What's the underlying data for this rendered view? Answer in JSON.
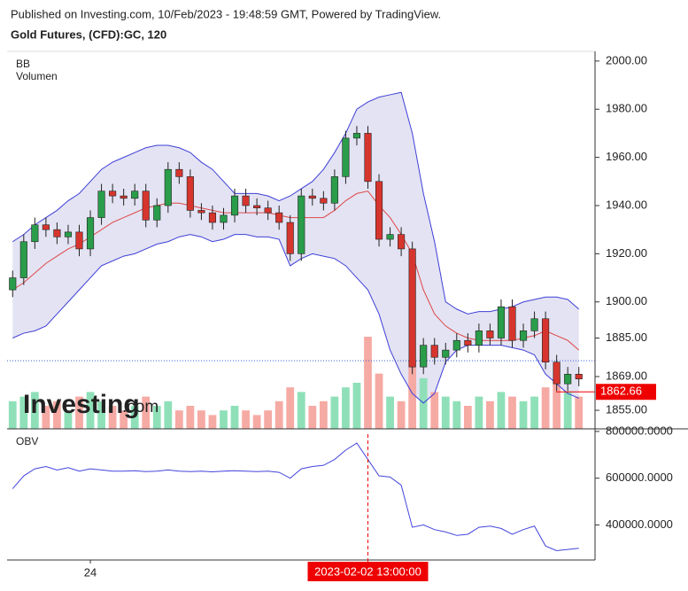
{
  "header": {
    "published": "Published on Investing.com, 10/Feb/2023 - 19:48:59 GMT, Powered by TradingView.",
    "instrument": "Gold Futures, (CFD):GC, 120"
  },
  "watermark": {
    "brand": "Investing",
    "suffix": ".com"
  },
  "chart_data": [
    {
      "type": "candlestick",
      "legend": [
        "BB",
        "Volumen"
      ],
      "categories": [
        null,
        null,
        null,
        null,
        null,
        null,
        null,
        "24",
        null,
        null,
        null,
        null,
        null,
        null,
        null,
        null,
        null,
        null,
        null,
        null,
        null,
        null,
        null,
        null,
        null,
        null,
        null,
        null,
        null,
        null,
        null,
        null,
        "2023-02-02 13:00:00",
        null,
        null,
        null,
        null,
        null,
        null,
        null,
        null,
        null,
        null,
        null,
        null,
        null,
        null,
        null,
        null,
        null,
        null,
        null
      ],
      "open": [
        1905,
        1910,
        1925,
        1932,
        1930,
        1927,
        1929,
        1922,
        1935,
        1946,
        1944,
        1943,
        1946,
        1934,
        1940,
        1955,
        1952,
        1938,
        1937,
        1933,
        1936,
        1944,
        1940,
        1939,
        1937,
        1933,
        1920,
        1944,
        1943,
        1941,
        1952,
        1968,
        1970,
        1950,
        1926,
        1928,
        1922,
        1873,
        1882,
        1877,
        1880,
        1884,
        1882,
        1888,
        1885,
        1898,
        1884,
        1888,
        1893,
        1875,
        1866,
        1870
      ],
      "high": [
        1913,
        1928,
        1935,
        1935,
        1933,
        1932,
        1932,
        1938,
        1949,
        1949,
        1947,
        1949,
        1949,
        1943,
        1958,
        1958,
        1955,
        1941,
        1940,
        1939,
        1947,
        1947,
        1943,
        1942,
        1940,
        1936,
        1947,
        1947,
        1946,
        1955,
        1971,
        1973,
        1973,
        1953,
        1931,
        1931,
        1925,
        1885,
        1885,
        1883,
        1887,
        1887,
        1891,
        1891,
        1901,
        1901,
        1891,
        1896,
        1896,
        1878,
        1873,
        1873
      ],
      "low": [
        1902,
        1907,
        1922,
        1927,
        1924,
        1924,
        1919,
        1919,
        1932,
        1941,
        1940,
        1940,
        1931,
        1931,
        1937,
        1949,
        1935,
        1934,
        1930,
        1930,
        1933,
        1937,
        1936,
        1934,
        1930,
        1917,
        1917,
        1940,
        1938,
        1938,
        1949,
        1965,
        1947,
        1923,
        1923,
        1919,
        1870,
        1870,
        1874,
        1874,
        1877,
        1879,
        1879,
        1882,
        1882,
        1881,
        1881,
        1885,
        1872,
        1863,
        1863,
        1865
      ],
      "close": [
        1910,
        1925,
        1932,
        1930,
        1927,
        1929,
        1922,
        1935,
        1946,
        1944,
        1943,
        1946,
        1934,
        1940,
        1955,
        1952,
        1938,
        1937,
        1933,
        1936,
        1944,
        1940,
        1939,
        1937,
        1933,
        1920,
        1944,
        1943,
        1941,
        1952,
        1968,
        1970,
        1950,
        1926,
        1928,
        1922,
        1873,
        1882,
        1877,
        1880,
        1884,
        1882,
        1888,
        1885,
        1898,
        1884,
        1888,
        1893,
        1875,
        1866,
        1870,
        1868
      ],
      "bb_upper": {
        "color": "#3f3fd8",
        "values": [
          1925,
          1928,
          1932,
          1935,
          1938,
          1942,
          1945,
          1950,
          1955,
          1958,
          1960,
          1962,
          1964,
          1965,
          1965,
          1964,
          1962,
          1958,
          1955,
          1950,
          1945,
          1945,
          1945,
          1944,
          1942,
          1944,
          1947,
          1950,
          1955,
          1962,
          1970,
          1980,
          1983,
          1985,
          1986,
          1987,
          1970,
          1945,
          1925,
          1900,
          1897,
          1895,
          1896,
          1896,
          1897,
          1898,
          1900,
          1901,
          1902,
          1902,
          1901,
          1897
        ]
      },
      "bb_basis": {
        "color": "#e04848",
        "values": [
          1905,
          1908,
          1912,
          1916,
          1919,
          1922,
          1924,
          1927,
          1930,
          1933,
          1935,
          1937,
          1939,
          1940,
          1941,
          1941,
          1940,
          1939,
          1938,
          1937,
          1937,
          1937,
          1937,
          1937,
          1936,
          1935,
          1935,
          1935,
          1935,
          1938,
          1942,
          1945,
          1946,
          1940,
          1935,
          1928,
          1920,
          1905,
          1895,
          1890,
          1887,
          1885,
          1884,
          1884,
          1884,
          1884,
          1885,
          1886,
          1888,
          1886,
          1884,
          1880
        ]
      },
      "bb_lower": {
        "color": "#3f3fd8",
        "values": [
          1885,
          1887,
          1888,
          1890,
          1895,
          1900,
          1905,
          1910,
          1915,
          1917,
          1919,
          1920,
          1922,
          1924,
          1925,
          1927,
          1928,
          1927,
          1925,
          1926,
          1928,
          1928,
          1927,
          1927,
          1926,
          1915,
          1918,
          1920,
          1919,
          1918,
          1915,
          1910,
          1905,
          1895,
          1880,
          1870,
          1862,
          1858,
          1862,
          1875,
          1880,
          1882,
          1882,
          1882,
          1882,
          1881,
          1880,
          1878,
          1870,
          1866,
          1862,
          1860
        ]
      },
      "volume": [
        30,
        35,
        40,
        25,
        30,
        20,
        35,
        40,
        30,
        25,
        20,
        25,
        35,
        25,
        30,
        20,
        25,
        20,
        15,
        20,
        25,
        20,
        15,
        20,
        30,
        45,
        40,
        25,
        30,
        35,
        45,
        50,
        100,
        60,
        35,
        30,
        75,
        55,
        40,
        35,
        30,
        25,
        35,
        30,
        40,
        35,
        30,
        35,
        45,
        55,
        40,
        35
      ],
      "volume_ylim": [
        0,
        100
      ],
      "up_color": "#2a9d4a",
      "down_color": "#d6352e",
      "volume_up_color": "#8fe0b8",
      "volume_down_color": "#f6aaa4",
      "band_fill": "#e3e3f3",
      "ylim": [
        1847.3,
        2004
      ],
      "yticks": [
        {
          "value": 2000,
          "label": "2000.00"
        },
        {
          "value": 1980,
          "label": "1980.00"
        },
        {
          "value": 1960,
          "label": "1960.00"
        },
        {
          "value": 1940,
          "label": "1940.00"
        },
        {
          "value": 1920,
          "label": "1920.00"
        },
        {
          "value": 1900,
          "label": "1900.00"
        },
        {
          "value": 1885,
          "label": "1885.00"
        },
        {
          "value": 1869,
          "label": "1869.00"
        },
        {
          "value": 1855,
          "label": "1855.00"
        }
      ],
      "last_price": {
        "value": 1862.66,
        "label": "1862.66"
      },
      "crosshair_price": 1875.6
    },
    {
      "type": "line",
      "legend": [
        "OBV"
      ],
      "color": "#4444dd",
      "values": [
        555000,
        610000,
        640000,
        650000,
        635000,
        645000,
        630000,
        640000,
        635000,
        630000,
        630000,
        632000,
        628000,
        630000,
        635000,
        630000,
        628000,
        630000,
        627000,
        630000,
        632000,
        630000,
        628000,
        630000,
        625000,
        600000,
        640000,
        650000,
        655000,
        680000,
        720000,
        750000,
        680000,
        610000,
        605000,
        570000,
        390000,
        400000,
        380000,
        370000,
        355000,
        360000,
        390000,
        395000,
        385000,
        360000,
        380000,
        395000,
        310000,
        290000,
        295000,
        300000
      ],
      "ylim": [
        250000,
        811000
      ],
      "yticks": [
        {
          "value": 800000,
          "label": "800000.0000"
        },
        {
          "value": 600000,
          "label": "600000.0000"
        },
        {
          "value": 400000,
          "label": "400000.0000"
        }
      ]
    }
  ]
}
